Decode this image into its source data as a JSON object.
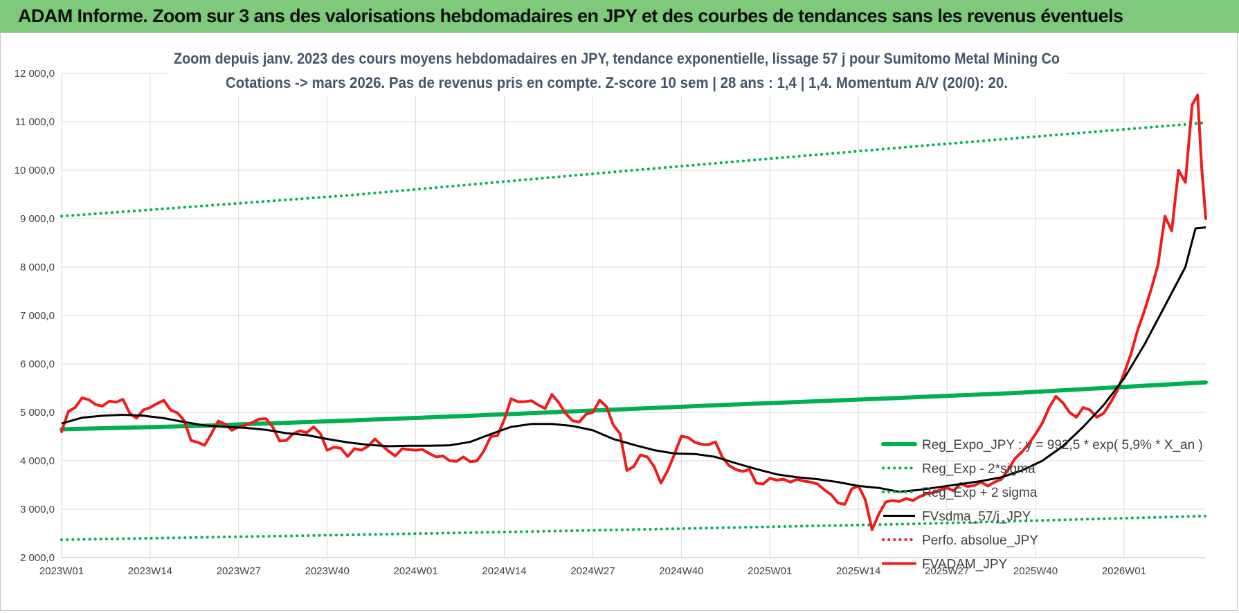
{
  "header": {
    "title": "ADAM Informe. Zoom sur 3 ans des valorisations hebdomadaires en JPY et des courbes de tendances sans les revenus éventuels"
  },
  "chart_data": {
    "type": "line",
    "subtitle_line1": "Zoom depuis janv. 2023 des cours moyens hebdomadaires en JPY, tendance exponentielle, lissage 57 j pour Sumitomo Metal Mining Co",
    "subtitle_line2": "Cotations -> mars 2026. Pas de revenus pris en compte. Z-score 10 sem | 28 ans : 1,4 | 1,4. Momentum A/V (20/0): 20.",
    "ylim": [
      2000,
      12000
    ],
    "y_ticks": [
      "2 000,0",
      "3 000,0",
      "4 000,0",
      "5 000,0",
      "6 000,0",
      "7 000,0",
      "8 000,0",
      "9 000,0",
      "10 000,0",
      "11 000,0",
      "12 000,0"
    ],
    "x_ticks": [
      "2023W01",
      "2023W14",
      "2023W27",
      "2023W40",
      "2024W01",
      "2024W14",
      "2024W27",
      "2024W40",
      "2025W01",
      "2025W14",
      "2025W27",
      "2025W40",
      "2026W01"
    ],
    "x_range_weeks": [
      0,
      168
    ],
    "legend_position": "right",
    "grid": true,
    "colors": {
      "reg_expo": "#00b050",
      "reg_minus": "#00b050",
      "reg_plus": "#00b050",
      "fvsdma": "#000000",
      "perfo": "#e02020",
      "fvadam": "#ee1c1c"
    },
    "series": [
      {
        "name": "Reg_Expo_JPY : y = 992,5 * exp( 5,9% *  X_an )",
        "style": "solid-thick",
        "points": [
          [
            0,
            4650
          ],
          [
            20,
            4720
          ],
          [
            40,
            4820
          ],
          [
            60,
            4930
          ],
          [
            80,
            5050
          ],
          [
            100,
            5170
          ],
          [
            120,
            5280
          ],
          [
            140,
            5400
          ],
          [
            168,
            5620
          ]
        ]
      },
      {
        "name": "Reg_Exp - 2*sigma",
        "style": "dotted",
        "points": [
          [
            0,
            2370
          ],
          [
            42,
            2470
          ],
          [
            84,
            2580
          ],
          [
            126,
            2700
          ],
          [
            168,
            2860
          ]
        ]
      },
      {
        "name": "Reg_Exp + 2 sigma",
        "style": "dotted",
        "points": [
          [
            0,
            9050
          ],
          [
            42,
            9480
          ],
          [
            84,
            10000
          ],
          [
            126,
            10500
          ],
          [
            168,
            10980
          ]
        ]
      },
      {
        "name": "FVsdma_57/j_JPY",
        "style": "solid",
        "points": [
          [
            0,
            4770
          ],
          [
            3,
            4890
          ],
          [
            6,
            4930
          ],
          [
            9,
            4950
          ],
          [
            12,
            4930
          ],
          [
            15,
            4880
          ],
          [
            18,
            4800
          ],
          [
            21,
            4730
          ],
          [
            24,
            4700
          ],
          [
            27,
            4680
          ],
          [
            30,
            4640
          ],
          [
            33,
            4570
          ],
          [
            36,
            4530
          ],
          [
            39,
            4450
          ],
          [
            42,
            4380
          ],
          [
            45,
            4330
          ],
          [
            48,
            4300
          ],
          [
            51,
            4310
          ],
          [
            54,
            4310
          ],
          [
            57,
            4320
          ],
          [
            60,
            4390
          ],
          [
            63,
            4550
          ],
          [
            66,
            4700
          ],
          [
            69,
            4760
          ],
          [
            72,
            4760
          ],
          [
            75,
            4720
          ],
          [
            78,
            4630
          ],
          [
            81,
            4450
          ],
          [
            84,
            4330
          ],
          [
            87,
            4220
          ],
          [
            90,
            4150
          ],
          [
            93,
            4140
          ],
          [
            96,
            4080
          ],
          [
            99,
            3950
          ],
          [
            102,
            3830
          ],
          [
            105,
            3720
          ],
          [
            108,
            3660
          ],
          [
            111,
            3620
          ],
          [
            114,
            3560
          ],
          [
            117,
            3480
          ],
          [
            120,
            3440
          ],
          [
            123,
            3360
          ],
          [
            126,
            3400
          ],
          [
            129,
            3460
          ],
          [
            132,
            3520
          ],
          [
            135,
            3580
          ],
          [
            138,
            3660
          ],
          [
            141,
            3800
          ],
          [
            144,
            4000
          ],
          [
            147,
            4300
          ],
          [
            150,
            4700
          ],
          [
            153,
            5150
          ],
          [
            156,
            5700
          ],
          [
            159,
            6400
          ],
          [
            162,
            7200
          ],
          [
            165,
            8000
          ],
          [
            166.5,
            8800
          ],
          [
            168,
            8820
          ]
        ]
      },
      {
        "name": "Perfo. absolue_JPY",
        "style": "dotted",
        "points": []
      },
      {
        "name": "FVADAM_JPY",
        "style": "solid-thick",
        "points": [
          [
            0,
            4600
          ],
          [
            1,
            5020
          ],
          [
            2,
            5100
          ],
          [
            3,
            5300
          ],
          [
            4,
            5260
          ],
          [
            5,
            5160
          ],
          [
            6,
            5130
          ],
          [
            7,
            5230
          ],
          [
            8,
            5210
          ],
          [
            9,
            5270
          ],
          [
            10,
            4980
          ],
          [
            11,
            4880
          ],
          [
            12,
            5050
          ],
          [
            13,
            5100
          ],
          [
            14,
            5180
          ],
          [
            15,
            5250
          ],
          [
            16,
            5050
          ],
          [
            17,
            4990
          ],
          [
            18,
            4830
          ],
          [
            19,
            4420
          ],
          [
            20,
            4380
          ],
          [
            21,
            4320
          ],
          [
            22,
            4560
          ],
          [
            23,
            4820
          ],
          [
            24,
            4760
          ],
          [
            25,
            4630
          ],
          [
            26,
            4700
          ],
          [
            27,
            4730
          ],
          [
            28,
            4790
          ],
          [
            29,
            4860
          ],
          [
            30,
            4870
          ],
          [
            31,
            4700
          ],
          [
            32,
            4410
          ],
          [
            33,
            4420
          ],
          [
            34,
            4560
          ],
          [
            35,
            4620
          ],
          [
            36,
            4580
          ],
          [
            37,
            4700
          ],
          [
            38,
            4560
          ],
          [
            39,
            4220
          ],
          [
            40,
            4280
          ],
          [
            41,
            4260
          ],
          [
            42,
            4090
          ],
          [
            43,
            4250
          ],
          [
            44,
            4220
          ],
          [
            45,
            4300
          ],
          [
            46,
            4450
          ],
          [
            47,
            4320
          ],
          [
            48,
            4200
          ],
          [
            49,
            4100
          ],
          [
            50,
            4250
          ],
          [
            51,
            4230
          ],
          [
            52,
            4220
          ],
          [
            53,
            4230
          ],
          [
            54,
            4150
          ],
          [
            55,
            4080
          ],
          [
            56,
            4100
          ],
          [
            57,
            4000
          ],
          [
            58,
            3990
          ],
          [
            59,
            4080
          ],
          [
            60,
            3980
          ],
          [
            61,
            4000
          ],
          [
            62,
            4200
          ],
          [
            63,
            4500
          ],
          [
            64,
            4520
          ],
          [
            65,
            4850
          ],
          [
            66,
            5280
          ],
          [
            67,
            5220
          ],
          [
            68,
            5220
          ],
          [
            69,
            5240
          ],
          [
            70,
            5150
          ],
          [
            71,
            5080
          ],
          [
            72,
            5370
          ],
          [
            73,
            5200
          ],
          [
            74,
            4980
          ],
          [
            75,
            4830
          ],
          [
            76,
            4800
          ],
          [
            77,
            4960
          ],
          [
            78,
            5000
          ],
          [
            79,
            5250
          ],
          [
            80,
            5120
          ],
          [
            81,
            4740
          ],
          [
            82,
            4560
          ],
          [
            83,
            3800
          ],
          [
            84,
            3880
          ],
          [
            85,
            4120
          ],
          [
            86,
            4080
          ],
          [
            87,
            3880
          ],
          [
            88,
            3540
          ],
          [
            89,
            3800
          ],
          [
            90,
            4140
          ],
          [
            91,
            4510
          ],
          [
            92,
            4480
          ],
          [
            93,
            4380
          ],
          [
            94,
            4340
          ],
          [
            95,
            4330
          ],
          [
            96,
            4390
          ],
          [
            97,
            4080
          ],
          [
            98,
            3900
          ],
          [
            99,
            3820
          ],
          [
            100,
            3780
          ],
          [
            101,
            3820
          ],
          [
            102,
            3540
          ],
          [
            103,
            3520
          ],
          [
            104,
            3640
          ],
          [
            105,
            3600
          ],
          [
            106,
            3620
          ],
          [
            107,
            3560
          ],
          [
            108,
            3620
          ],
          [
            109,
            3580
          ],
          [
            110,
            3560
          ],
          [
            111,
            3520
          ],
          [
            112,
            3400
          ],
          [
            113,
            3300
          ],
          [
            114,
            3130
          ],
          [
            115,
            3100
          ],
          [
            116,
            3420
          ],
          [
            117,
            3480
          ],
          [
            118,
            3200
          ],
          [
            119,
            2580
          ],
          [
            120,
            2900
          ],
          [
            121,
            3150
          ],
          [
            122,
            3180
          ],
          [
            123,
            3160
          ],
          [
            124,
            3220
          ],
          [
            125,
            3180
          ],
          [
            126,
            3260
          ],
          [
            127,
            3320
          ],
          [
            128,
            3340
          ],
          [
            129,
            3400
          ],
          [
            130,
            3440
          ],
          [
            131,
            3380
          ],
          [
            132,
            3530
          ],
          [
            133,
            3470
          ],
          [
            134,
            3490
          ],
          [
            135,
            3560
          ],
          [
            136,
            3480
          ],
          [
            137,
            3560
          ],
          [
            138,
            3620
          ],
          [
            139,
            3820
          ],
          [
            140,
            4050
          ],
          [
            141,
            4180
          ],
          [
            142,
            4350
          ],
          [
            143,
            4550
          ],
          [
            144,
            4780
          ],
          [
            145,
            5100
          ],
          [
            146,
            5330
          ],
          [
            147,
            5200
          ],
          [
            148,
            5000
          ],
          [
            149,
            4900
          ],
          [
            150,
            5100
          ],
          [
            151,
            5050
          ],
          [
            152,
            4900
          ],
          [
            153,
            4980
          ],
          [
            154,
            5200
          ],
          [
            155,
            5450
          ],
          [
            156,
            5800
          ],
          [
            157,
            6200
          ],
          [
            158,
            6700
          ],
          [
            159,
            7100
          ],
          [
            160,
            7550
          ],
          [
            161,
            8050
          ],
          [
            162,
            9050
          ],
          [
            163,
            8750
          ],
          [
            164,
            10000
          ],
          [
            165,
            9750
          ],
          [
            166,
            11350
          ],
          [
            166.8,
            11550
          ],
          [
            167.4,
            10050
          ],
          [
            168,
            9000
          ]
        ]
      }
    ]
  }
}
